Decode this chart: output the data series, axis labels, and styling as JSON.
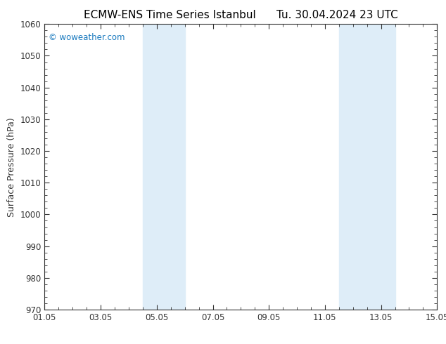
{
  "title_left": "ECMW-ENS Time Series Istanbul",
  "title_right": "Tu. 30.04.2024 23 UTC",
  "ylabel": "Surface Pressure (hPa)",
  "ylim": [
    970,
    1060
  ],
  "yticks": [
    970,
    980,
    990,
    1000,
    1010,
    1020,
    1030,
    1040,
    1050,
    1060
  ],
  "xlim_start": 0,
  "xlim_end": 14,
  "xtick_labels": [
    "01.05",
    "03.05",
    "05.05",
    "07.05",
    "09.05",
    "11.05",
    "13.05",
    "15.05"
  ],
  "xtick_positions": [
    0,
    2,
    4,
    6,
    8,
    10,
    12,
    14
  ],
  "shaded_bands": [
    {
      "x_start": 3.5,
      "x_end": 5.0
    },
    {
      "x_start": 10.5,
      "x_end": 12.5
    }
  ],
  "band_color": "#deedf8",
  "background_color": "#ffffff",
  "watermark_text": "© woweather.com",
  "watermark_color": "#1a7abf",
  "title_fontsize": 11,
  "tick_fontsize": 8.5,
  "ylabel_fontsize": 9,
  "spine_color": "#333333",
  "tick_color": "#333333"
}
